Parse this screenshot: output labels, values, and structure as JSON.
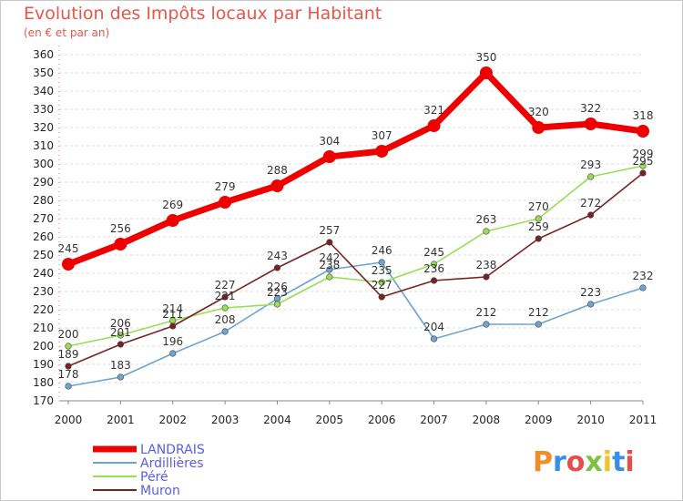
{
  "chart_data": {
    "type": "line",
    "title": "Evolution des Impôts locaux par Habitant",
    "subtitle": "(en € et par an)",
    "x": [
      "2000",
      "2001",
      "2002",
      "2003",
      "2004",
      "2005",
      "2006",
      "2007",
      "2008",
      "2009",
      "2010",
      "2011"
    ],
    "ylim": [
      170,
      360
    ],
    "ytick_step": 10,
    "grid": "horizontal",
    "legend_position": "bottom-left",
    "series": [
      {
        "name": "LANDRAIS",
        "color": "#ee0000",
        "values": [
          245,
          256,
          269,
          279,
          288,
          304,
          307,
          321,
          350,
          320,
          322,
          318
        ]
      },
      {
        "name": "Ardillières",
        "color": "#6fa3d0",
        "values": [
          178,
          183,
          196,
          208,
          226,
          242,
          246,
          204,
          212,
          212,
          223,
          232
        ]
      },
      {
        "name": "Péré",
        "color": "#99dd55",
        "values": [
          200,
          206,
          214,
          221,
          223,
          238,
          235,
          245,
          263,
          270,
          293,
          299
        ]
      },
      {
        "name": "Muron",
        "color": "#7a2222",
        "values": [
          189,
          201,
          211,
          227,
          243,
          257,
          227,
          236,
          238,
          259,
          272,
          295
        ]
      }
    ]
  },
  "logo_text": "Proxiti"
}
